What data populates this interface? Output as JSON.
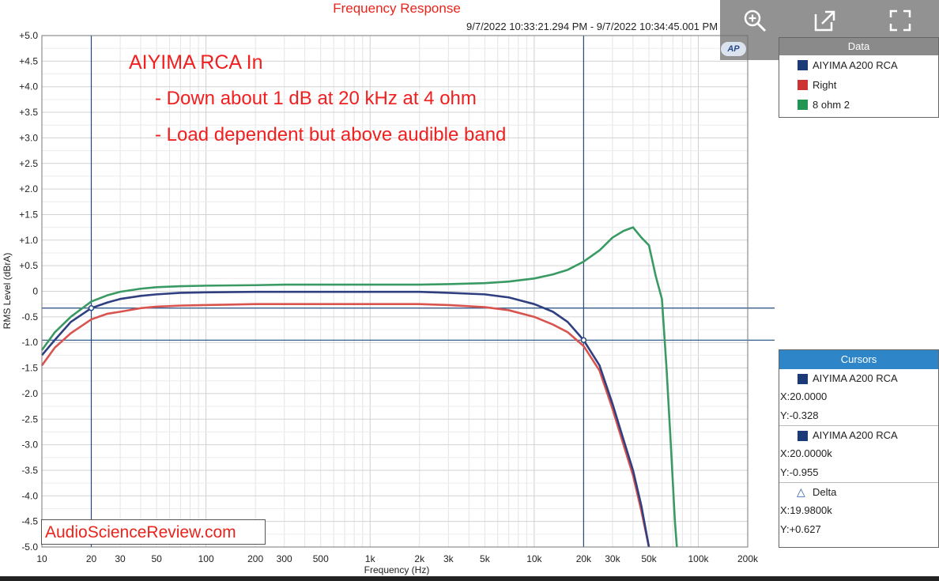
{
  "chart_data": {
    "type": "line",
    "title": "Frequency Response",
    "subtitle": "9/7/2022 10:33:21.294 PM - 9/7/2022 10:34:45.001 PM",
    "xlabel": "Frequency (Hz)",
    "ylabel": "RMS Level (dBrA)",
    "x_scale": "log",
    "xlim": [
      10,
      200000
    ],
    "ylim": [
      -5,
      5
    ],
    "grid": true,
    "x_ticks": [
      {
        "value": 10,
        "label": "10"
      },
      {
        "value": 20,
        "label": "20"
      },
      {
        "value": 30,
        "label": "30"
      },
      {
        "value": 50,
        "label": "50"
      },
      {
        "value": 100,
        "label": "100"
      },
      {
        "value": 200,
        "label": "200"
      },
      {
        "value": 300,
        "label": "300"
      },
      {
        "value": 500,
        "label": "500"
      },
      {
        "value": 1000,
        "label": "1k"
      },
      {
        "value": 2000,
        "label": "2k"
      },
      {
        "value": 3000,
        "label": "3k"
      },
      {
        "value": 5000,
        "label": "5k"
      },
      {
        "value": 10000,
        "label": "10k"
      },
      {
        "value": 20000,
        "label": "20k"
      },
      {
        "value": 30000,
        "label": "30k"
      },
      {
        "value": 50000,
        "label": "50k"
      },
      {
        "value": 100000,
        "label": "100k"
      },
      {
        "value": 200000,
        "label": "200k"
      }
    ],
    "y_ticks": [
      {
        "value": 5,
        "label": "+5.0"
      },
      {
        "value": 4.5,
        "label": "+4.5"
      },
      {
        "value": 4,
        "label": "+4.0"
      },
      {
        "value": 3.5,
        "label": "+3.5"
      },
      {
        "value": 3,
        "label": "+3.0"
      },
      {
        "value": 2.5,
        "label": "+2.5"
      },
      {
        "value": 2,
        "label": "+2.0"
      },
      {
        "value": 1.5,
        "label": "+1.5"
      },
      {
        "value": 1,
        "label": "+1.0"
      },
      {
        "value": 0.5,
        "label": "+0.5"
      },
      {
        "value": 0,
        "label": "0"
      },
      {
        "value": -0.5,
        "label": "-0.5"
      },
      {
        "value": -1,
        "label": "-1.0"
      },
      {
        "value": -1.5,
        "label": "-1.5"
      },
      {
        "value": -2,
        "label": "-2.0"
      },
      {
        "value": -2.5,
        "label": "-2.5"
      },
      {
        "value": -3,
        "label": "-3.0"
      },
      {
        "value": -3.5,
        "label": "-3.5"
      },
      {
        "value": -4,
        "label": "-4.0"
      },
      {
        "value": -4.5,
        "label": "-4.5"
      },
      {
        "value": -5,
        "label": "-5.0"
      }
    ],
    "annotations": [
      "AIYIMA RCA In",
      "- Down about 1 dB at 20 kHz at 4 ohm",
      "- Load dependent but above audible band"
    ],
    "cursor_lines": {
      "x": [
        20,
        20000
      ],
      "y": [
        -0.328,
        -0.955
      ]
    },
    "series": [
      {
        "name": "8 ohm 2",
        "color": "#3a9a64",
        "points": [
          [
            10,
            -1.15
          ],
          [
            12,
            -0.8
          ],
          [
            15,
            -0.5
          ],
          [
            20,
            -0.2
          ],
          [
            25,
            -0.08
          ],
          [
            30,
            -0.01
          ],
          [
            40,
            0.05
          ],
          [
            50,
            0.08
          ],
          [
            70,
            0.1
          ],
          [
            100,
            0.11
          ],
          [
            200,
            0.12
          ],
          [
            300,
            0.13
          ],
          [
            500,
            0.13
          ],
          [
            1000,
            0.13
          ],
          [
            2000,
            0.13
          ],
          [
            3000,
            0.14
          ],
          [
            5000,
            0.16
          ],
          [
            7000,
            0.19
          ],
          [
            10000,
            0.25
          ],
          [
            13000,
            0.33
          ],
          [
            16000,
            0.42
          ],
          [
            20000,
            0.58
          ],
          [
            25000,
            0.8
          ],
          [
            30000,
            1.05
          ],
          [
            35000,
            1.18
          ],
          [
            40000,
            1.25
          ],
          [
            45000,
            1.05
          ],
          [
            50000,
            0.9
          ],
          [
            55000,
            0.3
          ],
          [
            60000,
            -0.15
          ],
          [
            64000,
            -1.5
          ],
          [
            68000,
            -3.0
          ],
          [
            72000,
            -4.5
          ],
          [
            74000,
            -5.0
          ]
        ]
      },
      {
        "name": "Right",
        "color": "#d9534f",
        "points": [
          [
            10,
            -1.45
          ],
          [
            12,
            -1.1
          ],
          [
            15,
            -0.82
          ],
          [
            20,
            -0.55
          ],
          [
            25,
            -0.44
          ],
          [
            30,
            -0.4
          ],
          [
            40,
            -0.33
          ],
          [
            50,
            -0.3
          ],
          [
            70,
            -0.28
          ],
          [
            100,
            -0.27
          ],
          [
            200,
            -0.25
          ],
          [
            500,
            -0.25
          ],
          [
            1000,
            -0.25
          ],
          [
            2000,
            -0.25
          ],
          [
            3000,
            -0.27
          ],
          [
            5000,
            -0.31
          ],
          [
            7000,
            -0.37
          ],
          [
            10000,
            -0.5
          ],
          [
            13000,
            -0.65
          ],
          [
            16000,
            -0.8
          ],
          [
            20000,
            -1.07
          ],
          [
            25000,
            -1.55
          ],
          [
            30000,
            -2.3
          ],
          [
            35000,
            -3.0
          ],
          [
            40000,
            -3.6
          ],
          [
            45000,
            -4.3
          ],
          [
            50000,
            -5.0
          ]
        ]
      },
      {
        "name": "AIYIMA A200 RCA",
        "color": "#2f3f80",
        "points": [
          [
            10,
            -1.25
          ],
          [
            12,
            -0.95
          ],
          [
            15,
            -0.6
          ],
          [
            20,
            -0.33
          ],
          [
            25,
            -0.22
          ],
          [
            30,
            -0.15
          ],
          [
            40,
            -0.09
          ],
          [
            50,
            -0.06
          ],
          [
            70,
            -0.03
          ],
          [
            100,
            -0.02
          ],
          [
            200,
            -0.01
          ],
          [
            500,
            -0.01
          ],
          [
            1000,
            -0.01
          ],
          [
            2000,
            -0.01
          ],
          [
            3000,
            -0.03
          ],
          [
            5000,
            -0.06
          ],
          [
            7000,
            -0.12
          ],
          [
            10000,
            -0.25
          ],
          [
            13000,
            -0.4
          ],
          [
            16000,
            -0.6
          ],
          [
            20000,
            -0.955
          ],
          [
            25000,
            -1.45
          ],
          [
            30000,
            -2.2
          ],
          [
            35000,
            -2.9
          ],
          [
            40000,
            -3.5
          ],
          [
            45000,
            -4.2
          ],
          [
            50000,
            -5.0
          ]
        ]
      }
    ]
  },
  "legend": {
    "title": "Data",
    "items": [
      {
        "label": "AIYIMA A200 RCA",
        "color": "#1c3a78"
      },
      {
        "label": "Right",
        "color": "#cc3333"
      },
      {
        "label": "8 ohm 2",
        "color": "#219653"
      }
    ]
  },
  "cursors": {
    "title": "Cursors",
    "cursor1": {
      "label": "AIYIMA A200 RCA",
      "color": "#1c3a78",
      "x": "X:20.0000",
      "y": "Y:-0.328"
    },
    "cursor2": {
      "label": "AIYIMA A200 RCA",
      "color": "#1c3a78",
      "x": "X:20.0000k",
      "y": "Y:-0.955"
    },
    "delta": {
      "label": "Delta",
      "x": "X:19.9800k",
      "y": "Y:+0.627"
    }
  },
  "toolbar": {
    "zoom_icon": "zoom-in-icon",
    "popout_icon": "external-link-icon",
    "fullscreen_icon": "fullscreen-icon",
    "logo": "AP"
  },
  "watermark": "AudioScienceReview.com",
  "colors": {
    "title": "#e8241c",
    "annotation": "#f02020",
    "panel_header": "#2e86c8",
    "cursor_line": "#234a7e",
    "grid": "#d9d9d9"
  }
}
